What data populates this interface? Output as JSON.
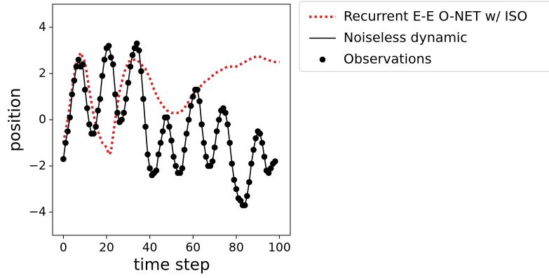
{
  "chart_data": {
    "type": "line",
    "xlabel": "time step",
    "ylabel": "position",
    "xlim": [
      -5,
      105
    ],
    "ylim": [
      -5,
      5
    ],
    "xticks": [
      0,
      20,
      40,
      60,
      80,
      100
    ],
    "yticks": [
      {
        "value": -4,
        "label": "−4"
      },
      {
        "value": -2,
        "label": "−2"
      },
      0,
      2,
      4
    ],
    "grid": false,
    "legend_loc": "outside upper left",
    "series": [
      {
        "name": "Recurrent E-E O-NET w/ ISO",
        "color": "#d62728",
        "kind": "line",
        "linestyle": "dotted",
        "x": [
          0,
          2,
          4,
          6,
          8,
          10,
          12,
          14,
          16,
          18,
          20,
          21,
          22,
          24,
          26,
          28,
          30,
          32,
          34,
          36,
          38,
          40,
          42,
          44,
          46,
          48,
          50,
          52,
          54,
          56,
          58,
          60,
          62,
          64,
          66,
          68,
          70,
          72,
          74,
          76,
          78,
          80,
          82,
          84,
          86,
          88,
          90,
          92,
          94,
          96,
          98,
          100
        ],
        "values": [
          -1.0,
          0.0,
          1.3,
          2.5,
          2.9,
          2.5,
          1.3,
          0.2,
          -0.5,
          -1.0,
          -1.2,
          -1.5,
          -1.4,
          0.0,
          1.2,
          2.0,
          2.5,
          2.6,
          2.6,
          2.4,
          2.2,
          1.8,
          1.3,
          0.9,
          0.6,
          0.4,
          0.3,
          0.3,
          0.3,
          0.5,
          0.8,
          1.1,
          1.3,
          1.5,
          1.7,
          1.8,
          2.0,
          2.1,
          2.2,
          2.3,
          2.3,
          2.3,
          2.4,
          2.5,
          2.6,
          2.7,
          2.75,
          2.7,
          2.6,
          2.55,
          2.5,
          2.5
        ]
      },
      {
        "name": "Noiseless dynamic",
        "color": "#000000",
        "kind": "line",
        "linestyle": "solid",
        "x": [
          0,
          1,
          2,
          3,
          4,
          5,
          6,
          7,
          8,
          9,
          10,
          11,
          12,
          13,
          14,
          15,
          16,
          17,
          18,
          19,
          20,
          21,
          22,
          23,
          24,
          25,
          26,
          27,
          28,
          29,
          30,
          31,
          32,
          33,
          34,
          35,
          36,
          37,
          38,
          39,
          40,
          41,
          42,
          43,
          44,
          45,
          46,
          47,
          48,
          49,
          50,
          51,
          52,
          53,
          54,
          55,
          56,
          57,
          58,
          59,
          60,
          61,
          62,
          63,
          64,
          65,
          66,
          67,
          68,
          69,
          70,
          71,
          72,
          73,
          74,
          75,
          76,
          77,
          78,
          79,
          80,
          81,
          82,
          83,
          84,
          85,
          86,
          87,
          88,
          89,
          90,
          91,
          92,
          93,
          94,
          95,
          96,
          97,
          98
        ],
        "values": [
          -1.7,
          -1.0,
          -0.5,
          0.1,
          1.1,
          1.7,
          2.3,
          2.5,
          2.4,
          2.3,
          1.4,
          0.5,
          -0.2,
          -0.6,
          -0.6,
          -0.3,
          0.4,
          1.0,
          1.9,
          2.6,
          3.0,
          3.2,
          2.8,
          2.3,
          1.2,
          0.3,
          -0.1,
          -0.1,
          0.3,
          0.9,
          1.6,
          2.3,
          2.8,
          3.1,
          3.3,
          3.0,
          2.1,
          0.9,
          -0.3,
          -1.5,
          -2.1,
          -2.4,
          -2.3,
          -2.2,
          -1.5,
          -1.0,
          -0.5,
          0.1,
          0.1,
          -0.3,
          -0.9,
          -1.6,
          -2.0,
          -2.3,
          -2.3,
          -2.1,
          -1.3,
          -0.6,
          0.0,
          0.6,
          1.0,
          1.3,
          1.3,
          0.8,
          -0.2,
          -1.0,
          -1.6,
          -2.0,
          -2.0,
          -1.8,
          -1.2,
          -0.5,
          0.0,
          0.4,
          0.5,
          0.3,
          -0.2,
          -1.0,
          -1.9,
          -2.6,
          -3.0,
          -3.4,
          -3.5,
          -3.8,
          -3.7,
          -3.3,
          -2.7,
          -1.9,
          -1.3,
          -0.8,
          -0.5,
          -0.6,
          -1.0,
          -1.6,
          -2.2,
          -2.3,
          -2.1,
          -1.9,
          -1.7
        ]
      },
      {
        "name": "Observations",
        "color": "#000000",
        "kind": "scatter",
        "x": [
          0,
          1,
          2,
          3,
          4,
          5,
          6,
          7,
          8,
          9,
          10,
          11,
          12,
          13,
          14,
          15,
          16,
          17,
          18,
          19,
          20,
          21,
          22,
          23,
          24,
          25,
          26,
          27,
          28,
          29,
          30,
          31,
          32,
          33,
          34,
          35,
          36,
          37,
          38,
          39,
          40,
          41,
          42,
          43,
          44,
          45,
          46,
          47,
          48,
          49,
          50,
          51,
          52,
          53,
          54,
          55,
          56,
          57,
          58,
          59,
          60,
          61,
          62,
          63,
          64,
          65,
          66,
          67,
          68,
          69,
          70,
          71,
          72,
          73,
          74,
          75,
          76,
          77,
          78,
          79,
          80,
          81,
          82,
          83,
          84,
          85,
          86,
          87,
          88,
          89,
          90,
          91,
          92,
          93,
          94,
          95,
          96,
          97,
          98
        ],
        "values": [
          -1.7,
          -1.0,
          -0.5,
          0.1,
          1.1,
          1.7,
          2.3,
          2.6,
          2.3,
          2.4,
          1.3,
          0.5,
          -0.2,
          -0.6,
          -0.6,
          -0.3,
          0.4,
          0.9,
          1.9,
          2.6,
          3.1,
          3.2,
          2.7,
          2.4,
          1.1,
          0.3,
          -0.1,
          0.0,
          0.3,
          0.9,
          1.6,
          2.3,
          2.8,
          3.1,
          3.3,
          3.0,
          2.1,
          0.9,
          -0.3,
          -1.5,
          -2.1,
          -2.4,
          -2.3,
          -2.2,
          -1.5,
          -1.0,
          -0.5,
          0.1,
          0.1,
          -0.3,
          -0.9,
          -1.6,
          -2.0,
          -2.3,
          -2.3,
          -2.1,
          -1.3,
          -0.6,
          0.0,
          0.6,
          1.0,
          1.3,
          1.3,
          0.8,
          -0.2,
          -1.0,
          -1.6,
          -2.0,
          -2.0,
          -1.8,
          -1.2,
          -0.5,
          0.0,
          0.4,
          0.5,
          0.3,
          -0.2,
          -1.0,
          -1.9,
          -2.6,
          -3.0,
          -3.4,
          -3.5,
          -3.7,
          -3.7,
          -3.3,
          -2.7,
          -1.9,
          -1.3,
          -0.8,
          -0.5,
          -0.6,
          -1.0,
          -1.6,
          -2.2,
          -2.3,
          -2.1,
          -1.9,
          -1.8
        ]
      }
    ]
  }
}
